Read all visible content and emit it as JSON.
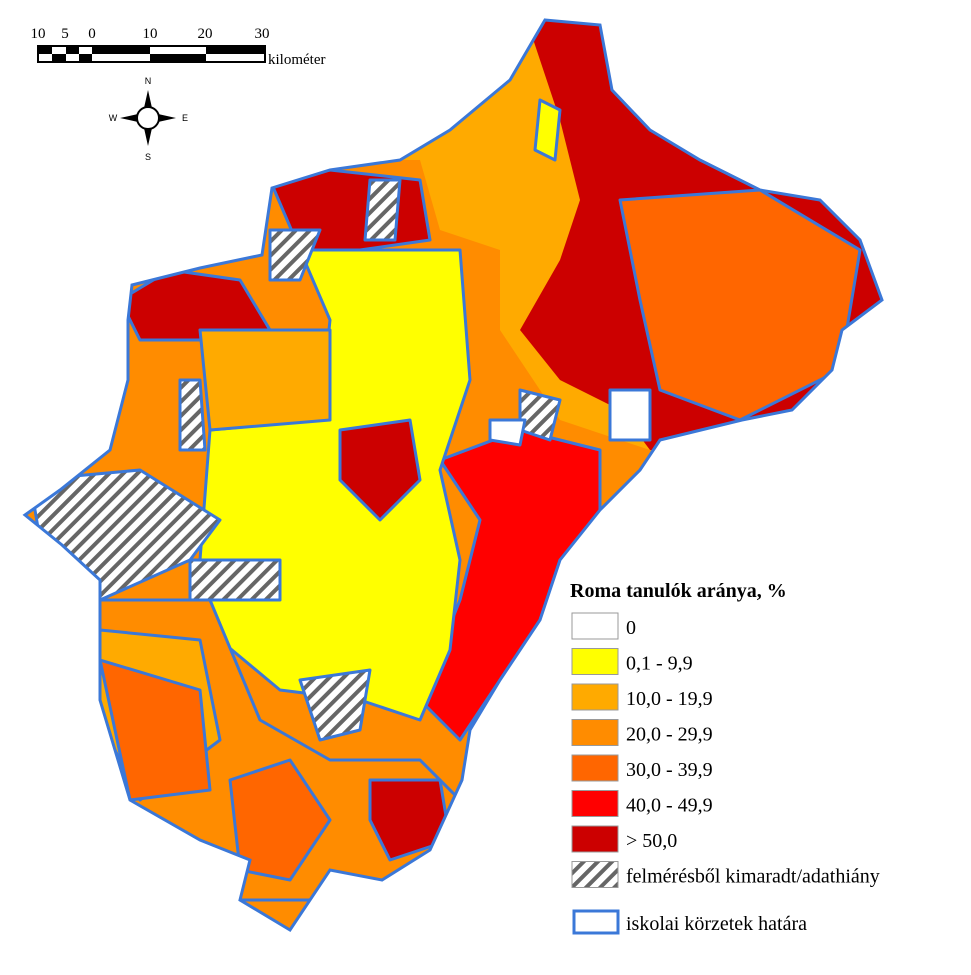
{
  "scale_bar": {
    "ticks": [
      "10",
      "5",
      "0",
      "10",
      "20",
      "30"
    ],
    "unit": "kilométer"
  },
  "compass": {
    "n": "N",
    "w": "W",
    "e": "E",
    "s": "S"
  },
  "legend": {
    "title": "Roma tanulók aránya, %",
    "items": [
      {
        "label": "0",
        "color": "#ffffff"
      },
      {
        "label": "0,1 - 9,9",
        "color": "#ffff00"
      },
      {
        "label": "10,0 - 19,9",
        "color": "#ffaa00"
      },
      {
        "label": "20,0 - 29,9",
        "color": "#ff8c00"
      },
      {
        "label": "30,0 - 39,9",
        "color": "#ff6600"
      },
      {
        "label": "40,0 - 49,9",
        "color": "#ff0000"
      },
      {
        "label": "> 50,0",
        "color": "#cc0000"
      },
      {
        "label": "felmérésből kimaradt/adathiány"
      }
    ],
    "boundary": {
      "label": "iskolai körzetek határa",
      "color": "#3b78d8"
    }
  }
}
